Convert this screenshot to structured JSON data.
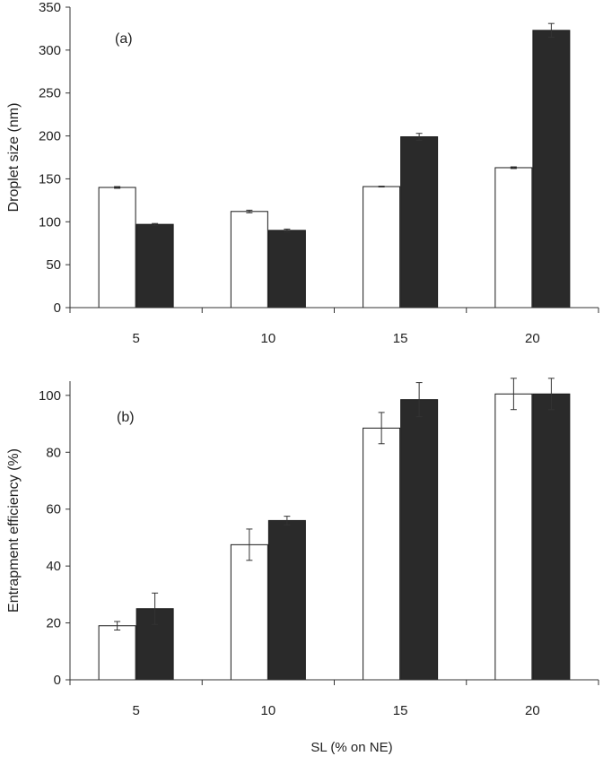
{
  "figure": {
    "xlabel": "SL (% on NE)"
  },
  "chart_data": [
    {
      "type": "bar",
      "panel_label": "(a)",
      "ylabel": "Droplet size (nm)",
      "xlabel": "",
      "categories": [
        "5",
        "10",
        "15",
        "20"
      ],
      "ylim": [
        0,
        350
      ],
      "yticks": [
        0,
        50,
        100,
        150,
        200,
        250,
        300,
        350
      ],
      "grid": false,
      "legend": "none",
      "series": [
        {
          "color": "#ffffff",
          "values": [
            140,
            112,
            141,
            163
          ],
          "errors": [
            1,
            1.5,
            0.5,
            1
          ]
        },
        {
          "color": "#2a2a2a",
          "values": [
            97,
            90,
            199,
            323
          ],
          "errors": [
            1,
            1.5,
            4,
            8
          ]
        }
      ]
    },
    {
      "type": "bar",
      "panel_label": "(b)",
      "ylabel": "Entrapment efficiency (%)",
      "xlabel": "",
      "categories": [
        "5",
        "10",
        "15",
        "20"
      ],
      "ylim": [
        0,
        105
      ],
      "yticks": [
        0,
        20,
        40,
        60,
        80,
        100
      ],
      "grid": false,
      "legend": "none",
      "series": [
        {
          "color": "#ffffff",
          "values": [
            19,
            47.5,
            88.5,
            100.5
          ],
          "errors": [
            1.5,
            5.5,
            5.5,
            5.5
          ]
        },
        {
          "color": "#2a2a2a",
          "values": [
            25,
            56,
            98.5,
            100.5
          ],
          "errors": [
            5.5,
            1.5,
            6,
            5.5
          ]
        }
      ]
    }
  ]
}
